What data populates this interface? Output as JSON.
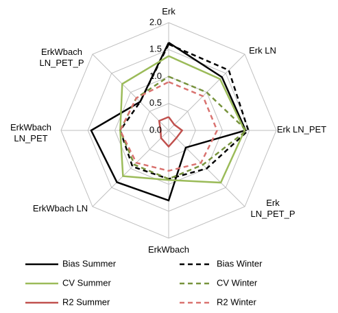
{
  "chart_data": {
    "type": "radar",
    "categories": [
      "Erk",
      "Erk LN",
      "Erk LN_PET",
      "Erk\nLN_PET_P",
      "ErkWbach",
      "ErkWbach LN",
      "ErkWbach\nLN_PET",
      "ErkWbach\nLN_PET_P"
    ],
    "rlim": [
      0,
      2
    ],
    "rticks": [
      {
        "value": 0,
        "label": "0.0"
      },
      {
        "value": 0.5,
        "label": "0.5"
      },
      {
        "value": 1,
        "label": "1.0"
      },
      {
        "value": 1.5,
        "label": "1.5"
      },
      {
        "value": 2,
        "label": "2.0"
      }
    ],
    "grid": true,
    "series": [
      {
        "name": "Bias Summer",
        "color": "#000000",
        "dash": false,
        "values": [
          1.63,
          1.4,
          1.43,
          0.45,
          1.3,
          1.36,
          1.44,
          0.75
        ]
      },
      {
        "name": "Bias Winter",
        "color": "#000000",
        "dash": true,
        "values": [
          1.6,
          1.58,
          1.48,
          1.0,
          0.9,
          0.95,
          0.9,
          0.75
        ]
      },
      {
        "name": "CV Summer",
        "color": "#9bbb59",
        "dash": false,
        "values": [
          1.38,
          1.35,
          1.41,
          1.37,
          0.92,
          1.2,
          0.9,
          1.22
        ]
      },
      {
        "name": "CV Winter",
        "color": "#77933c",
        "dash": true,
        "values": [
          1.0,
          1.0,
          1.45,
          0.9,
          0.9,
          0.9,
          0.9,
          0.85
        ]
      },
      {
        "name": "R2 Summer",
        "color": "#c0504d",
        "dash": false,
        "values": [
          0.25,
          0.15,
          0.25,
          0.2,
          0.3,
          0.2,
          0.15,
          0.25
        ]
      },
      {
        "name": "R2 Winter",
        "color": "#d9726f",
        "dash": true,
        "values": [
          0.9,
          0.9,
          0.9,
          0.85,
          0.75,
          0.85,
          0.9,
          0.85
        ]
      }
    ]
  }
}
